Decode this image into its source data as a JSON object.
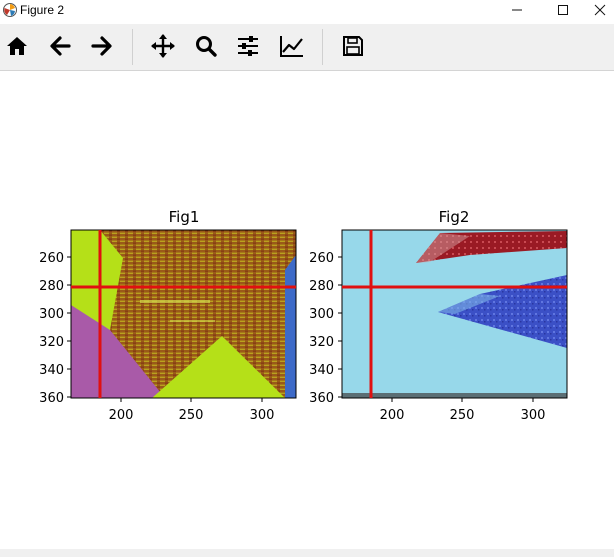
{
  "window": {
    "title": "Figure 2"
  },
  "toolbar": {
    "buttons": [
      {
        "name": "home",
        "icon": "home-icon"
      },
      {
        "name": "back",
        "icon": "arrow-left-icon"
      },
      {
        "name": "forward",
        "icon": "arrow-right-icon"
      },
      {
        "name": "pan",
        "icon": "move-icon"
      },
      {
        "name": "zoom",
        "icon": "magnifier-icon"
      },
      {
        "name": "subplots",
        "icon": "sliders-icon"
      },
      {
        "name": "axes",
        "icon": "line-chart-icon"
      },
      {
        "name": "save",
        "icon": "floppy-disk-icon"
      }
    ]
  },
  "figure": {
    "axes": [
      {
        "title": "Fig1",
        "xticks": [
          "200",
          "250",
          "300"
        ],
        "yticks": [
          "260",
          "280",
          "300",
          "320",
          "340",
          "360"
        ]
      },
      {
        "title": "Fig2",
        "xticks": [
          "200",
          "250",
          "300"
        ],
        "yticks": [
          "260",
          "280",
          "300",
          "320",
          "340",
          "360"
        ]
      }
    ]
  },
  "chart_data": [
    {
      "type": "image",
      "title": "Fig1",
      "xlim": [
        165,
        325
      ],
      "ylim": [
        360,
        241
      ],
      "xticks": [
        200,
        250,
        300
      ],
      "yticks": [
        260,
        280,
        300,
        320,
        340,
        360
      ],
      "crosshair": {
        "x": 186,
        "y": 281,
        "color": "#e01010"
      }
    },
    {
      "type": "image",
      "title": "Fig2",
      "xlim": [
        165,
        325
      ],
      "ylim": [
        360,
        241
      ],
      "xticks": [
        200,
        250,
        300
      ],
      "yticks": [
        260,
        280,
        300,
        320,
        340,
        360
      ],
      "crosshair": {
        "x": 186,
        "y": 281,
        "color": "#e01010"
      }
    }
  ]
}
